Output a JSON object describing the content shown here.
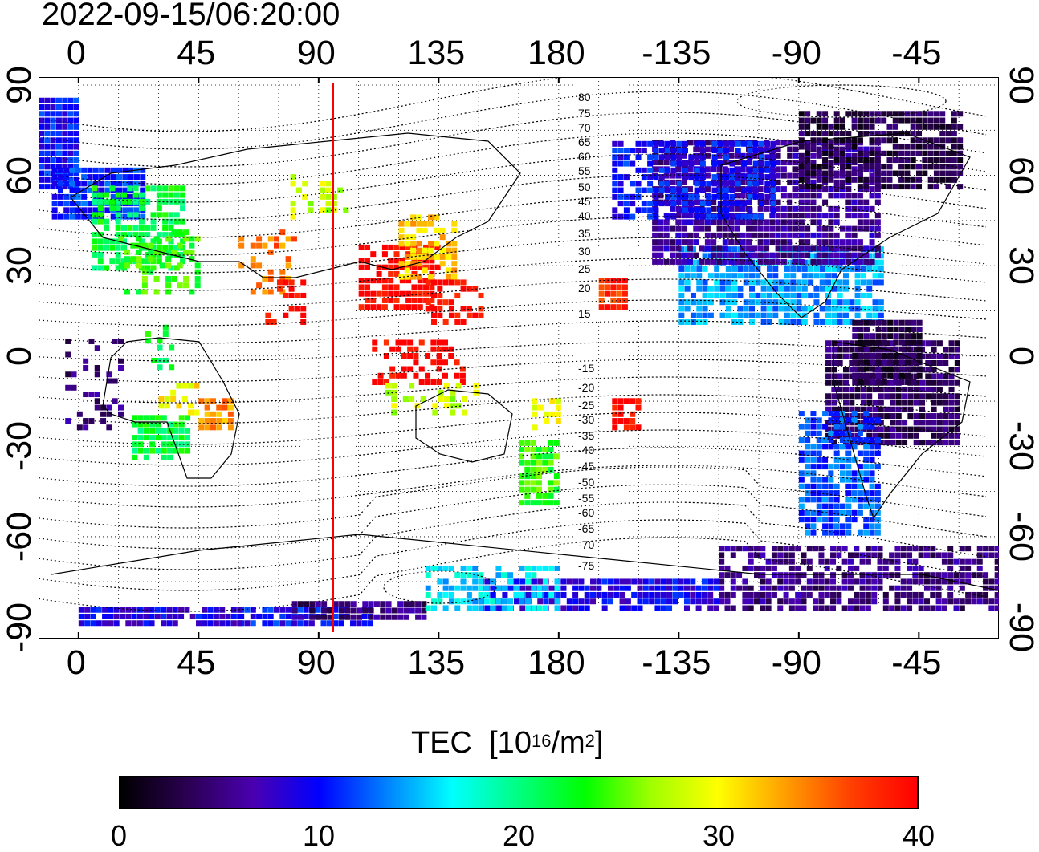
{
  "title": "2022-09-15/06:20:00",
  "x_ticks": [
    "0",
    "45",
    "90",
    "135",
    "180",
    "-135",
    "-90",
    "-45"
  ],
  "y_ticks": [
    "90",
    "60",
    "30",
    "0",
    "-30",
    "-60",
    "-90"
  ],
  "colorbar": {
    "label": "TEC",
    "unit_prefix": "[10",
    "unit_exp": "16",
    "unit_mid": "/m",
    "unit_exp2": "2",
    "unit_suffix": "]",
    "ticks": [
      "0",
      "10",
      "20",
      "30",
      "40"
    ],
    "range": [
      0,
      40
    ],
    "colors": [
      "#000000",
      "#2a0050",
      "#4a00b0",
      "#0000ff",
      "#0080ff",
      "#00ffff",
      "#00ff80",
      "#00ff00",
      "#a0ff00",
      "#ffff00",
      "#ffa000",
      "#ff4000",
      "#ff0000"
    ]
  },
  "contour_labels": [
    "80",
    "75",
    "70",
    "65",
    "60",
    "55",
    "50",
    "45",
    "40",
    "35",
    "30",
    "25",
    "20",
    "15",
    "-15",
    "-20",
    "-25",
    "-30",
    "-35",
    "-40",
    "-45",
    "-50",
    "-55",
    "-60",
    "-65",
    "-70",
    "-75"
  ],
  "terminator_color": "#ff0000",
  "map": {
    "lon_range": [
      -15,
      345
    ],
    "lat_range": [
      -90,
      90
    ]
  }
}
